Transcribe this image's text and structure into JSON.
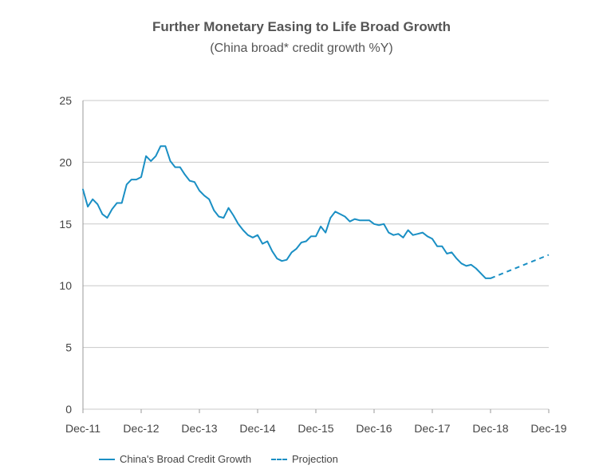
{
  "chart_data": {
    "type": "line",
    "title": "Further Monetary Easing to Life Broad Growth",
    "subtitle": "(China broad* credit growth %Y)",
    "xlabel": "",
    "ylabel": "",
    "ylim": [
      0,
      25
    ],
    "yticks": [
      "0",
      "5",
      "10",
      "15",
      "20",
      "25"
    ],
    "xticks": [
      "Dec-11",
      "Dec-12",
      "Dec-13",
      "Dec-14",
      "Dec-15",
      "Dec-16",
      "Dec-17",
      "Dec-18",
      "Dec-19"
    ],
    "grid": true,
    "legend_position": "bottom-left",
    "series": [
      {
        "name": "China's Broad Credit Growth",
        "style": "solid",
        "color": "#1a8fc4",
        "x_months_from_dec11": [
          0,
          1,
          2,
          3,
          4,
          5,
          6,
          7,
          8,
          9,
          10,
          11,
          12,
          13,
          14,
          15,
          16,
          17,
          18,
          19,
          20,
          21,
          22,
          23,
          24,
          25,
          26,
          27,
          28,
          29,
          30,
          31,
          32,
          33,
          34,
          35,
          36,
          37,
          38,
          39,
          40,
          41,
          42,
          43,
          44,
          45,
          46,
          47,
          48,
          49,
          50,
          51,
          52,
          53,
          54,
          55,
          56,
          57,
          58,
          59,
          60,
          61,
          62,
          63,
          64,
          65,
          66,
          67,
          68,
          69,
          70,
          71,
          72,
          73,
          74,
          75,
          76,
          77,
          78,
          79,
          80,
          81,
          82,
          83,
          84
        ],
        "values": [
          17.8,
          16.4,
          17.0,
          16.6,
          15.8,
          15.5,
          16.2,
          16.7,
          16.7,
          18.2,
          18.6,
          18.6,
          18.8,
          20.5,
          20.1,
          20.5,
          21.3,
          21.3,
          20.1,
          19.6,
          19.6,
          19.0,
          18.5,
          18.4,
          17.7,
          17.3,
          17.0,
          16.1,
          15.6,
          15.5,
          16.3,
          15.7,
          15.0,
          14.5,
          14.1,
          13.9,
          14.1,
          13.4,
          13.6,
          12.8,
          12.2,
          12.0,
          12.1,
          12.7,
          13.0,
          13.5,
          13.6,
          14.0,
          14.0,
          14.8,
          14.3,
          15.5,
          16.0,
          15.8,
          15.6,
          15.2,
          15.4,
          15.3,
          15.3,
          15.3,
          15.0,
          14.9,
          15.0,
          14.3,
          14.1,
          14.2,
          13.9,
          14.5,
          14.1,
          14.2,
          14.3,
          14.0,
          13.8,
          13.2,
          13.2,
          12.6,
          12.7,
          12.2,
          11.8,
          11.6,
          11.7,
          11.4,
          11.0,
          10.6,
          10.6
        ]
      },
      {
        "name": "Projection",
        "style": "dashed",
        "color": "#1a8fc4",
        "x_months_from_dec11": [
          84,
          96
        ],
        "values": [
          10.6,
          12.5
        ]
      }
    ]
  }
}
